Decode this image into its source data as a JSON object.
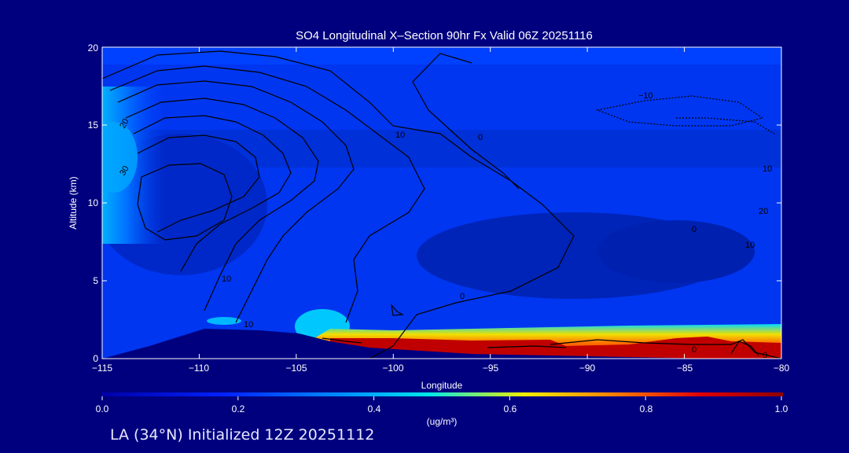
{
  "chart_data": {
    "type": "heatmap",
    "title": "SO4 Longitudinal X–Section 90hr  Fx Valid 06Z 20251116",
    "xlabel": "Longitude",
    "ylabel": "Altitude (km)",
    "xlim": [
      -115,
      -80
    ],
    "ylim": [
      0,
      20
    ],
    "xticks": [
      "−115",
      "−110",
      "−105",
      "−100",
      "−95",
      "−90",
      "−85",
      "−80"
    ],
    "yticks": [
      "0",
      "5",
      "10",
      "15",
      "20"
    ],
    "colorbar": {
      "label": "(ug/m³)",
      "ticks": [
        "0.0",
        "0.2",
        "0.4",
        "0.6",
        "0.8",
        "1.0"
      ],
      "range": [
        0.0,
        1.0
      ],
      "palette": [
        "#0000a8",
        "#0022ff",
        "#00a0ff",
        "#00e8e8",
        "#f0f000",
        "#ff8000",
        "#e00000",
        "#900000"
      ]
    },
    "contour_labels": [
      "20",
      "30",
      "10",
      "0",
      "10",
      "10",
      "0",
      "−10",
      "10",
      "20",
      "10",
      "0",
      "0",
      "0"
    ],
    "surface_band": {
      "lon": [
        -104,
        -102,
        -100,
        -98,
        -96,
        -94,
        -92,
        -90,
        -88,
        -86,
        -84,
        -82,
        -80
      ],
      "concentration": [
        0.9,
        0.95,
        0.95,
        0.95,
        0.95,
        0.97,
        0.85,
        0.82,
        0.85,
        0.9,
        0.95,
        0.8,
        0.7
      ]
    },
    "grid": false
  },
  "footer": {
    "text": "LA (34°N) Initialized 12Z 20251112"
  }
}
